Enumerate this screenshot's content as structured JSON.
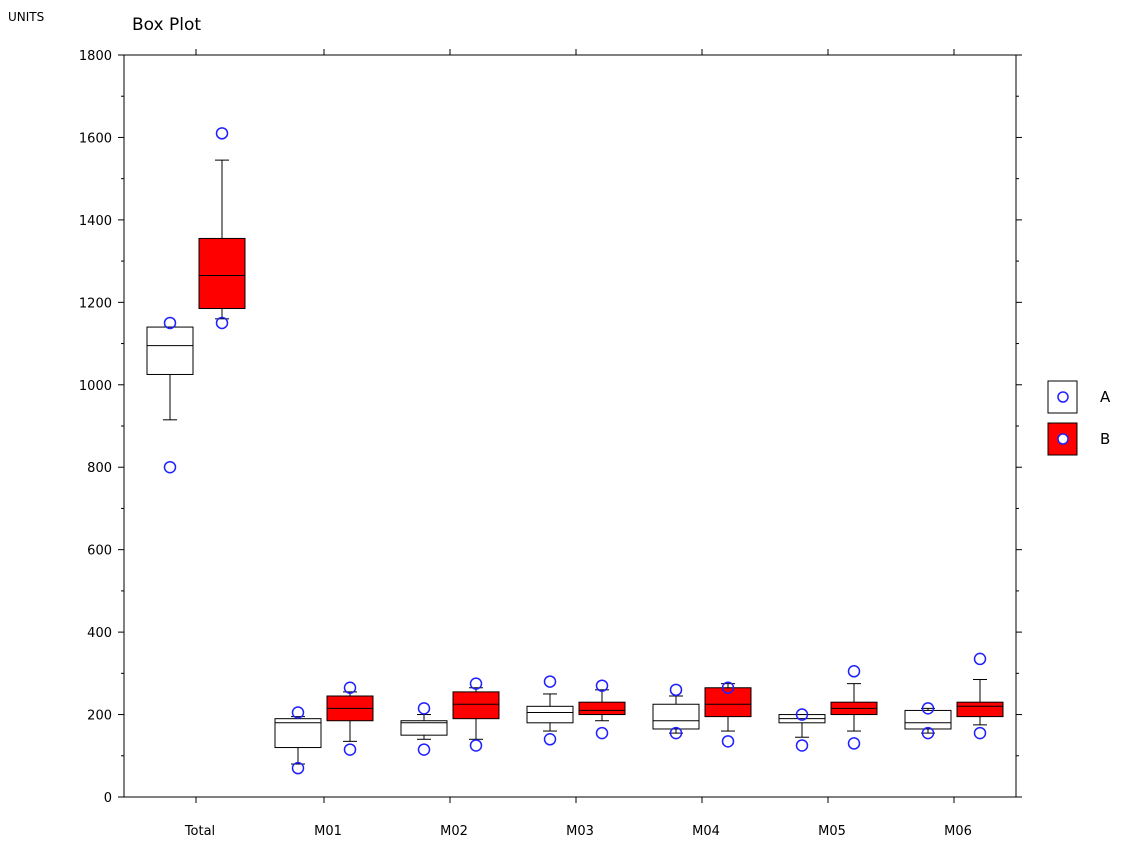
{
  "chart_data": {
    "type": "box",
    "title": "Box Plot",
    "ylabel": "UNITS",
    "xlabel": "",
    "ylim": [
      0,
      1800
    ],
    "y_ticks": [
      0,
      200,
      400,
      600,
      800,
      1000,
      1200,
      1400,
      1600,
      1800
    ],
    "y_tick_labels": [
      "0",
      "200",
      "400",
      "600",
      "800",
      "1000",
      "1200",
      "1400",
      "1600",
      "1800"
    ],
    "categories": [
      "Total",
      "M01",
      "M02",
      "M03",
      "M04",
      "M05",
      "M06"
    ],
    "legend_position": "right",
    "series": [
      {
        "name": "A",
        "color": "#ffffff",
        "boxes": [
          {
            "whisker_low": 915,
            "q1": 1025,
            "median": 1095,
            "q3": 1140,
            "whisker_high": 1140,
            "outliers": [
              800,
              1150
            ]
          },
          {
            "whisker_low": 80,
            "q1": 120,
            "median": 180,
            "q3": 190,
            "whisker_high": 195,
            "outliers": [
              70,
              205
            ]
          },
          {
            "whisker_low": 140,
            "q1": 150,
            "median": 180,
            "q3": 185,
            "whisker_high": 200,
            "outliers": [
              115,
              215
            ]
          },
          {
            "whisker_low": 160,
            "q1": 180,
            "median": 205,
            "q3": 220,
            "whisker_high": 250,
            "outliers": [
              140,
              280
            ]
          },
          {
            "whisker_low": 155,
            "q1": 165,
            "median": 185,
            "q3": 225,
            "whisker_high": 245,
            "outliers": [
              155,
              260
            ]
          },
          {
            "whisker_low": 145,
            "q1": 180,
            "median": 190,
            "q3": 200,
            "whisker_high": 200,
            "outliers": [
              125,
              200
            ]
          },
          {
            "whisker_low": 155,
            "q1": 165,
            "median": 180,
            "q3": 210,
            "whisker_high": 215,
            "outliers": [
              155,
              215
            ]
          }
        ]
      },
      {
        "name": "B",
        "color": "#ff0000",
        "boxes": [
          {
            "whisker_low": 1160,
            "q1": 1185,
            "median": 1265,
            "q3": 1355,
            "whisker_high": 1545,
            "outliers": [
              1150,
              1610
            ]
          },
          {
            "whisker_low": 135,
            "q1": 185,
            "median": 215,
            "q3": 245,
            "whisker_high": 255,
            "outliers": [
              115,
              265
            ]
          },
          {
            "whisker_low": 140,
            "q1": 190,
            "median": 225,
            "q3": 255,
            "whisker_high": 265,
            "outliers": [
              125,
              275
            ]
          },
          {
            "whisker_low": 185,
            "q1": 200,
            "median": 210,
            "q3": 230,
            "whisker_high": 260,
            "outliers": [
              155,
              270
            ]
          },
          {
            "whisker_low": 160,
            "q1": 195,
            "median": 225,
            "q3": 265,
            "whisker_high": 275,
            "outliers": [
              135,
              265
            ]
          },
          {
            "whisker_low": 160,
            "q1": 200,
            "median": 215,
            "q3": 230,
            "whisker_high": 275,
            "outliers": [
              130,
              305
            ]
          },
          {
            "whisker_low": 175,
            "q1": 195,
            "median": 220,
            "q3": 230,
            "whisker_high": 285,
            "outliers": [
              155,
              335
            ]
          }
        ]
      }
    ]
  }
}
